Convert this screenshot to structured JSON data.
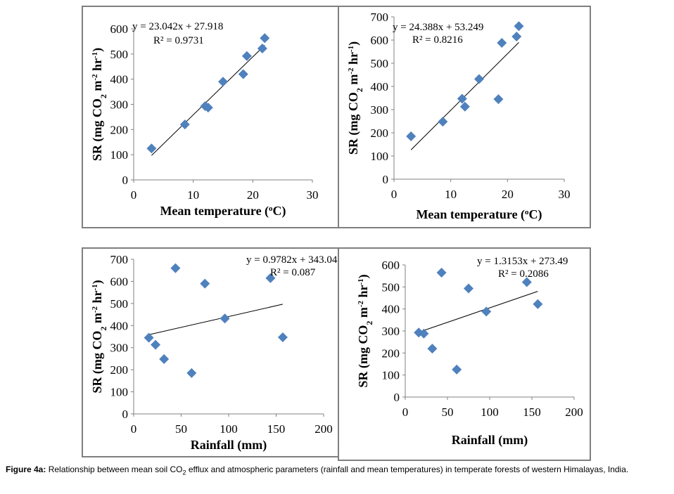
{
  "caption": {
    "label": "Figure 4a:",
    "text_before_sub": " Relationship between mean soil CO",
    "sub": "2",
    "text_after_sub": " efflux and atmospheric parameters (rainfall and mean temperatures) in temperate forests of western Himalayas, India."
  },
  "ylabel": {
    "pre": "SR (mg CO",
    "sub": "2",
    "mid": " m",
    "sup1": "-2",
    "mid2": " hr",
    "sup2": "-1",
    "post": ")"
  },
  "chart_data": [
    {
      "type": "scatter",
      "xlabel": {
        "pre": "Mean temperature (",
        "sup": "o",
        "post": "C)"
      },
      "xlim": [
        0,
        30
      ],
      "xticks": [
        0,
        10,
        20,
        30
      ],
      "ylim": [
        0,
        600
      ],
      "yticks": [
        0,
        100,
        200,
        300,
        400,
        500,
        600
      ],
      "equation": "y = 23.042x + 27.918",
      "r2": "R² = 0.9731",
      "trend": {
        "slope": 23.042,
        "intercept": 27.918,
        "x_from": 3,
        "x_to": 22
      },
      "points": [
        [
          3,
          125
        ],
        [
          8.6,
          220
        ],
        [
          12,
          293
        ],
        [
          12.5,
          287
        ],
        [
          15,
          390
        ],
        [
          18.4,
          420
        ],
        [
          19,
          492
        ],
        [
          21.6,
          522
        ],
        [
          22,
          563
        ]
      ],
      "marker_color": "#4f81bd"
    },
    {
      "type": "scatter",
      "xlabel": {
        "pre": "Mean temperature (",
        "sup": "o",
        "post": "C)"
      },
      "xlim": [
        0,
        30
      ],
      "xticks": [
        0,
        10,
        20,
        30
      ],
      "ylim": [
        0,
        700
      ],
      "yticks": [
        0,
        100,
        200,
        300,
        400,
        500,
        600,
        700
      ],
      "equation": "y = 24.388x + 53.249",
      "r2": "R² = 0.8216",
      "trend": {
        "slope": 24.388,
        "intercept": 53.249,
        "x_from": 3,
        "x_to": 22
      },
      "points": [
        [
          3,
          185
        ],
        [
          8.6,
          248
        ],
        [
          12,
          347
        ],
        [
          12.5,
          313
        ],
        [
          15,
          432
        ],
        [
          18.4,
          345
        ],
        [
          19,
          588
        ],
        [
          21.6,
          615
        ],
        [
          22,
          660
        ]
      ],
      "marker_color": "#4f81bd"
    },
    {
      "type": "scatter",
      "xlabel": {
        "pre": "Rainfall (mm)",
        "sup": "",
        "post": ""
      },
      "xlim": [
        0,
        200
      ],
      "xticks": [
        0,
        50,
        100,
        150,
        200
      ],
      "ylim": [
        0,
        700
      ],
      "yticks": [
        0,
        100,
        200,
        300,
        400,
        500,
        600,
        700
      ],
      "equation": "y = 0.9782x + 343.04",
      "r2": "R² = 0.087",
      "trend": {
        "slope": 0.9782,
        "intercept": 343.04,
        "x_from": 15,
        "x_to": 157
      },
      "points": [
        [
          16,
          345
        ],
        [
          23,
          313
        ],
        [
          32,
          248
        ],
        [
          44,
          660
        ],
        [
          61,
          185
        ],
        [
          75,
          590
        ],
        [
          96,
          432
        ],
        [
          144,
          615
        ],
        [
          157,
          347
        ]
      ],
      "marker_color": "#4f81bd"
    },
    {
      "type": "scatter",
      "xlabel": {
        "pre": "Rainfall (mm)",
        "sup": "",
        "post": ""
      },
      "xlim": [
        0,
        200
      ],
      "xticks": [
        0,
        50,
        100,
        150,
        200
      ],
      "ylim": [
        0,
        600
      ],
      "yticks": [
        0,
        100,
        200,
        300,
        400,
        500,
        600
      ],
      "equation": "y = 1.3153x + 273.49",
      "r2": "R² = 0.2086",
      "trend": {
        "slope": 1.3153,
        "intercept": 273.49,
        "x_from": 15,
        "x_to": 157
      },
      "points": [
        [
          16,
          293
        ],
        [
          22,
          288
        ],
        [
          32,
          220
        ],
        [
          43,
          565
        ],
        [
          61,
          125
        ],
        [
          75,
          493
        ],
        [
          96,
          388
        ],
        [
          144,
          522
        ],
        [
          157,
          422
        ]
      ],
      "marker_color": "#4f81bd"
    }
  ]
}
